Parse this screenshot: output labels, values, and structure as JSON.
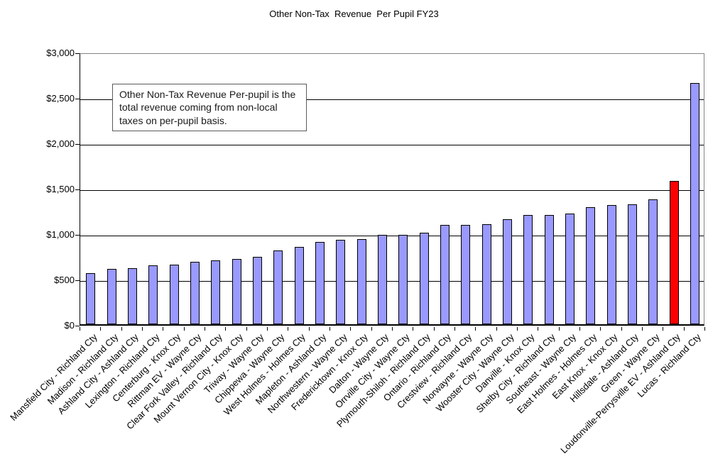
{
  "chart_data": {
    "type": "bar",
    "title": "Other Non-Tax  Revenue  Per Pupil FY23",
    "annotation": "Other Non-Tax Revenue Per-pupil is the total revenue coming from non-local taxes on per-pupil basis.",
    "xlabel": "",
    "ylabel": "",
    "ylim": [
      0,
      3000
    ],
    "ytick_step": 500,
    "ytick_labels": [
      "$3,000",
      "$2,500",
      "$2,000",
      "$1,500",
      "$1,000",
      "$500",
      "$0"
    ],
    "gridlines": true,
    "legend_position": "none",
    "bar_color": "#9999FF",
    "bar_border_color": "#000000",
    "highlight_color": "#FF0000",
    "highlight_index": 28,
    "highlight_category": "Loudonville-Perrysville EV - Ashland Cty",
    "categories": [
      "Mansfield City - Richland Cty",
      "Madison - Richland Cty",
      "Ashland City - Ashland Cty",
      "Lexington - Richland Cty",
      "Centerburg - Knox Cty",
      "Rittman EV - Wayne Cty",
      "Clear Fork Valley - Richland Cty",
      "Mount Vernon City - Knox Cty",
      "Triway - Wayne Cty",
      "Chippewa - Wayne Cty",
      "West Holmes - Holmes Cty",
      "Mapleton - Ashland Cty",
      "Northwestern - Wayne Cty",
      "Fredericktown - Knox Cty",
      "Dalton - Wayne Cty",
      "Orrville City - Wayne Cty",
      "Plymouth-Shiloh - Richland Cty",
      "Ontario - Richland Cty",
      "Crestview - Richland Cty",
      "Norwayne - Wayne Cty",
      "Wooster City - Wayne Cty",
      "Danville - Knox Cty",
      "Shelby City - Richland Cty",
      "Southeast - Wayne Cty",
      "East Holmes - Holmes Cty",
      "East Knox - Knox Cty",
      "Hillsdale - Ashland Cty",
      "Green - Wayne Cty",
      "Loudonville-Perrysville EV - Ashland Cty",
      "Lucas - Richland Cty"
    ],
    "values": [
      560,
      610,
      620,
      650,
      660,
      690,
      705,
      720,
      740,
      815,
      855,
      905,
      930,
      935,
      985,
      985,
      1005,
      1090,
      1090,
      1100,
      1160,
      1205,
      1205,
      1215,
      1290,
      1315,
      1320,
      1375,
      1580,
      2660
    ]
  }
}
